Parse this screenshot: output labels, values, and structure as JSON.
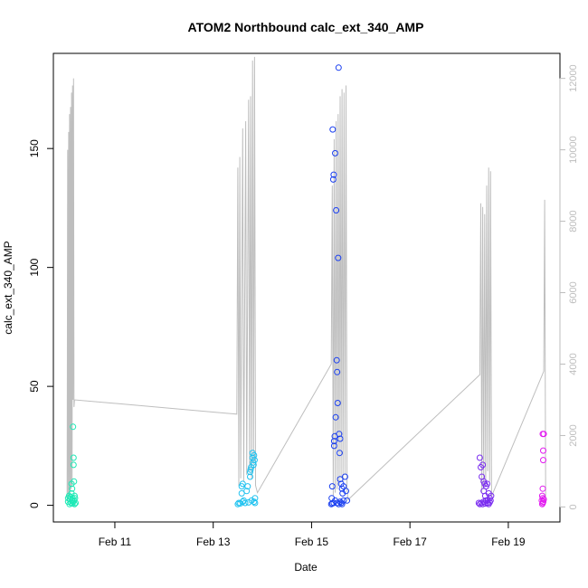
{
  "chart_data": {
    "type": "scatter",
    "title": "ATOM2 Northbound calc_ext_340_AMP",
    "xlabel": "Date",
    "ylabel": "calc_ext_340_AMP",
    "x_ticks": [
      "Feb 11",
      "Feb 13",
      "Feb 15",
      "Feb 17",
      "Feb 19"
    ],
    "x_tick_days": [
      11,
      13,
      15,
      17,
      19
    ],
    "xlim_days": [
      9.75,
      20.05
    ],
    "y_ticks": [
      0,
      50,
      100,
      150
    ],
    "ylim": [
      -7,
      190
    ],
    "y2_ticks": [
      0,
      2000,
      4000,
      6000,
      8000,
      10000,
      12000
    ],
    "y2lim": [
      -420,
      12700
    ],
    "colors": {
      "frame": "#000000",
      "grey_line": "#bebebe",
      "right_axis": "#bdbdbd"
    },
    "series": [
      {
        "color": "#1de9b6",
        "points": [
          [
            10.05,
            3
          ],
          [
            10.05,
            1.5
          ],
          [
            10.07,
            4
          ],
          [
            10.08,
            0.5
          ],
          [
            10.09,
            2.5
          ],
          [
            10.1,
            3.5
          ],
          [
            10.11,
            1
          ],
          [
            10.12,
            5
          ],
          [
            10.12,
            9
          ],
          [
            10.13,
            2
          ],
          [
            10.13,
            7
          ],
          [
            10.14,
            0.8
          ],
          [
            10.14,
            3
          ],
          [
            10.15,
            1.5
          ],
          [
            10.15,
            33
          ],
          [
            10.16,
            20
          ],
          [
            10.16,
            17
          ],
          [
            10.17,
            10
          ],
          [
            10.17,
            2
          ],
          [
            10.18,
            4
          ],
          [
            10.18,
            0.5
          ],
          [
            10.19,
            3
          ],
          [
            10.2,
            1
          ]
        ]
      },
      {
        "color": "#1fc2f0",
        "points": [
          [
            13.5,
            0.5
          ],
          [
            13.52,
            1
          ],
          [
            13.55,
            0.8
          ],
          [
            13.58,
            5
          ],
          [
            13.58,
            8
          ],
          [
            13.6,
            9
          ],
          [
            13.6,
            1.5
          ],
          [
            13.62,
            2
          ],
          [
            13.65,
            1
          ],
          [
            13.68,
            6
          ],
          [
            13.7,
            8
          ],
          [
            13.72,
            1.2
          ],
          [
            13.75,
            12
          ],
          [
            13.75,
            14
          ],
          [
            13.76,
            15
          ],
          [
            13.77,
            16
          ],
          [
            13.78,
            2
          ],
          [
            13.8,
            20
          ],
          [
            13.8,
            22
          ],
          [
            13.81,
            18
          ],
          [
            13.82,
            17
          ],
          [
            13.83,
            21
          ],
          [
            13.84,
            19
          ],
          [
            13.85,
            3
          ],
          [
            13.83,
            1.5
          ],
          [
            13.85,
            1
          ]
        ]
      },
      {
        "color": "#1a3ff0",
        "points": [
          [
            15.4,
            0.5
          ],
          [
            15.41,
            3
          ],
          [
            15.42,
            8
          ],
          [
            15.43,
            158
          ],
          [
            15.44,
            137
          ],
          [
            15.45,
            139
          ],
          [
            15.46,
            25
          ],
          [
            15.46,
            27
          ],
          [
            15.47,
            29
          ],
          [
            15.48,
            148
          ],
          [
            15.49,
            37
          ],
          [
            15.5,
            124
          ],
          [
            15.51,
            61
          ],
          [
            15.52,
            56
          ],
          [
            15.53,
            43
          ],
          [
            15.54,
            104
          ],
          [
            15.55,
            184
          ],
          [
            15.56,
            30
          ],
          [
            15.57,
            22
          ],
          [
            15.58,
            28
          ],
          [
            15.58,
            11
          ],
          [
            15.6,
            9
          ],
          [
            15.62,
            7
          ],
          [
            15.63,
            5
          ],
          [
            15.65,
            8
          ],
          [
            15.68,
            12
          ],
          [
            15.7,
            6
          ],
          [
            15.72,
            2
          ],
          [
            15.52,
            1
          ],
          [
            15.55,
            0.5
          ],
          [
            15.58,
            1.5
          ],
          [
            15.6,
            1
          ],
          [
            15.62,
            0.5
          ],
          [
            15.65,
            2
          ],
          [
            15.48,
            2
          ],
          [
            15.45,
            1
          ],
          [
            15.42,
            0.8
          ]
        ]
      },
      {
        "color": "#7a2cf0",
        "points": [
          [
            18.42,
            20
          ],
          [
            18.44,
            16
          ],
          [
            18.46,
            12
          ],
          [
            18.48,
            17
          ],
          [
            18.5,
            10
          ],
          [
            18.5,
            6
          ],
          [
            18.52,
            9
          ],
          [
            18.53,
            4
          ],
          [
            18.55,
            8
          ],
          [
            18.57,
            9
          ],
          [
            18.58,
            2
          ],
          [
            18.6,
            5
          ],
          [
            18.62,
            3
          ],
          [
            18.64,
            2
          ],
          [
            18.65,
            4
          ],
          [
            18.45,
            1
          ],
          [
            18.48,
            0.5
          ],
          [
            18.5,
            1.5
          ],
          [
            18.53,
            0.8
          ],
          [
            18.55,
            2
          ],
          [
            18.58,
            1
          ],
          [
            18.6,
            0.5
          ],
          [
            18.62,
            1.2
          ],
          [
            18.42,
            0.5
          ],
          [
            18.4,
            1
          ]
        ]
      },
      {
        "color": "#e21bf0",
        "points": [
          [
            19.7,
            30
          ],
          [
            19.72,
            30
          ],
          [
            19.71,
            23
          ],
          [
            19.71,
            19
          ],
          [
            19.7,
            7
          ],
          [
            19.69,
            4
          ],
          [
            19.7,
            3
          ],
          [
            19.68,
            2
          ],
          [
            19.71,
            1.5
          ],
          [
            19.7,
            1
          ],
          [
            19.69,
            0.5
          ],
          [
            19.72,
            2.5
          ]
        ]
      }
    ],
    "line_series_right_axis": {
      "color": "#bebebe",
      "points": [
        [
          10.03,
          150
        ],
        [
          10.04,
          10000
        ],
        [
          10.05,
          200
        ],
        [
          10.06,
          10500
        ],
        [
          10.07,
          300
        ],
        [
          10.08,
          11000
        ],
        [
          10.09,
          400
        ],
        [
          10.1,
          11200
        ],
        [
          10.11,
          500
        ],
        [
          10.12,
          11600
        ],
        [
          10.13,
          600
        ],
        [
          10.14,
          11800
        ],
        [
          10.15,
          3000
        ],
        [
          10.16,
          12000
        ],
        [
          10.17,
          2800
        ],
        [
          10.18,
          3000
        ],
        [
          13.48,
          2600
        ],
        [
          13.5,
          9500
        ],
        [
          13.52,
          600
        ],
        [
          13.54,
          9800
        ],
        [
          13.56,
          800
        ],
        [
          13.6,
          10600
        ],
        [
          13.62,
          700
        ],
        [
          13.66,
          10800
        ],
        [
          13.68,
          900
        ],
        [
          13.72,
          11400
        ],
        [
          13.74,
          1000
        ],
        [
          13.76,
          11500
        ],
        [
          13.78,
          800
        ],
        [
          13.8,
          12500
        ],
        [
          13.82,
          1200
        ],
        [
          13.84,
          12600
        ],
        [
          13.86,
          600
        ],
        [
          13.9,
          400
        ],
        [
          15.4,
          4000
        ],
        [
          15.42,
          9000
        ],
        [
          15.44,
          300
        ],
        [
          15.46,
          10300
        ],
        [
          15.48,
          400
        ],
        [
          15.5,
          10800
        ],
        [
          15.52,
          500
        ],
        [
          15.54,
          11000
        ],
        [
          15.56,
          600
        ],
        [
          15.58,
          11500
        ],
        [
          15.6,
          800
        ],
        [
          15.62,
          11700
        ],
        [
          15.64,
          700
        ],
        [
          15.66,
          11600
        ],
        [
          15.68,
          900
        ],
        [
          15.7,
          11800
        ],
        [
          15.72,
          500
        ],
        [
          15.74,
          200
        ],
        [
          18.42,
          3700
        ],
        [
          18.44,
          8500
        ],
        [
          18.46,
          400
        ],
        [
          18.48,
          8400
        ],
        [
          18.5,
          500
        ],
        [
          18.52,
          8200
        ],
        [
          18.54,
          600
        ],
        [
          18.56,
          9000
        ],
        [
          18.58,
          1000
        ],
        [
          18.6,
          9500
        ],
        [
          18.62,
          700
        ],
        [
          18.64,
          9400
        ],
        [
          18.66,
          300
        ],
        [
          19.72,
          3800
        ],
        [
          19.74,
          8600
        ],
        [
          19.76,
          200
        ]
      ]
    }
  }
}
